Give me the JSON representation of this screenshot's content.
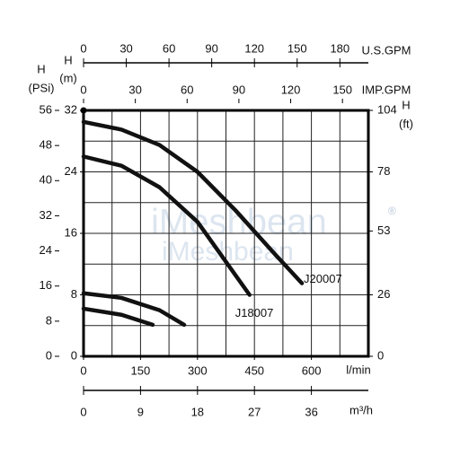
{
  "chart_data": {
    "type": "line",
    "xlabel": "l/min",
    "xlim": [
      0,
      750
    ],
    "xticks": [
      0,
      150,
      300,
      450,
      600
    ],
    "ylabel": [
      "H",
      "(m)"
    ],
    "ylim": [
      0,
      32
    ],
    "yticks": [
      0,
      8,
      16,
      24,
      32
    ],
    "grid": true,
    "xgrid": [
      75,
      150,
      225,
      300,
      375,
      450,
      525,
      600,
      675
    ],
    "ygrid": [
      4,
      8,
      12,
      16,
      20,
      24,
      28
    ],
    "secondary_axes": [
      {
        "side": "left",
        "label": [
          "H",
          "(PSi)"
        ],
        "lim": [
          0,
          56
        ],
        "ticks": [
          0,
          8,
          16,
          24,
          32,
          40,
          48,
          56
        ]
      },
      {
        "side": "top",
        "label": [
          "U.S.GPM"
        ],
        "lim": [
          0,
          200
        ],
        "ticks": [
          0,
          30,
          60,
          90,
          120,
          150,
          180
        ]
      },
      {
        "side": "top",
        "label": [
          "IMP.GPM"
        ],
        "lim": [
          0,
          165
        ],
        "ticks": [
          0,
          30,
          60,
          90,
          120,
          150
        ]
      },
      {
        "side": "right",
        "label": [
          "H",
          "(ft)"
        ],
        "lim": [
          0,
          104
        ],
        "ticks": [
          0,
          26,
          53,
          78,
          104
        ]
      },
      {
        "side": "bottom",
        "label": [
          "m³/h"
        ],
        "lim": [
          0,
          45
        ],
        "ticks": [
          0,
          9,
          18,
          27,
          36
        ]
      }
    ],
    "series": [
      {
        "name": "J20007",
        "color": "#111111",
        "x": [
          0,
          100,
          200,
          300,
          400,
          500,
          575
        ],
        "values": [
          30.5,
          29.5,
          27.5,
          24,
          19,
          13.5,
          9.5
        ]
      },
      {
        "name": "J18007",
        "color": "#111111",
        "x": [
          0,
          100,
          200,
          300,
          437
        ],
        "values": [
          26,
          24.8,
          22,
          17.5,
          8
        ]
      },
      {
        "color": "#111111",
        "x": [
          0,
          100,
          200,
          265
        ],
        "values": [
          8.2,
          7.6,
          6,
          4.1
        ]
      },
      {
        "color": "#111111",
        "x": [
          0,
          100,
          182
        ],
        "values": [
          6.2,
          5.4,
          4.1
        ]
      }
    ],
    "watermark": "iMeshbean",
    "watermark_mark": "®"
  }
}
